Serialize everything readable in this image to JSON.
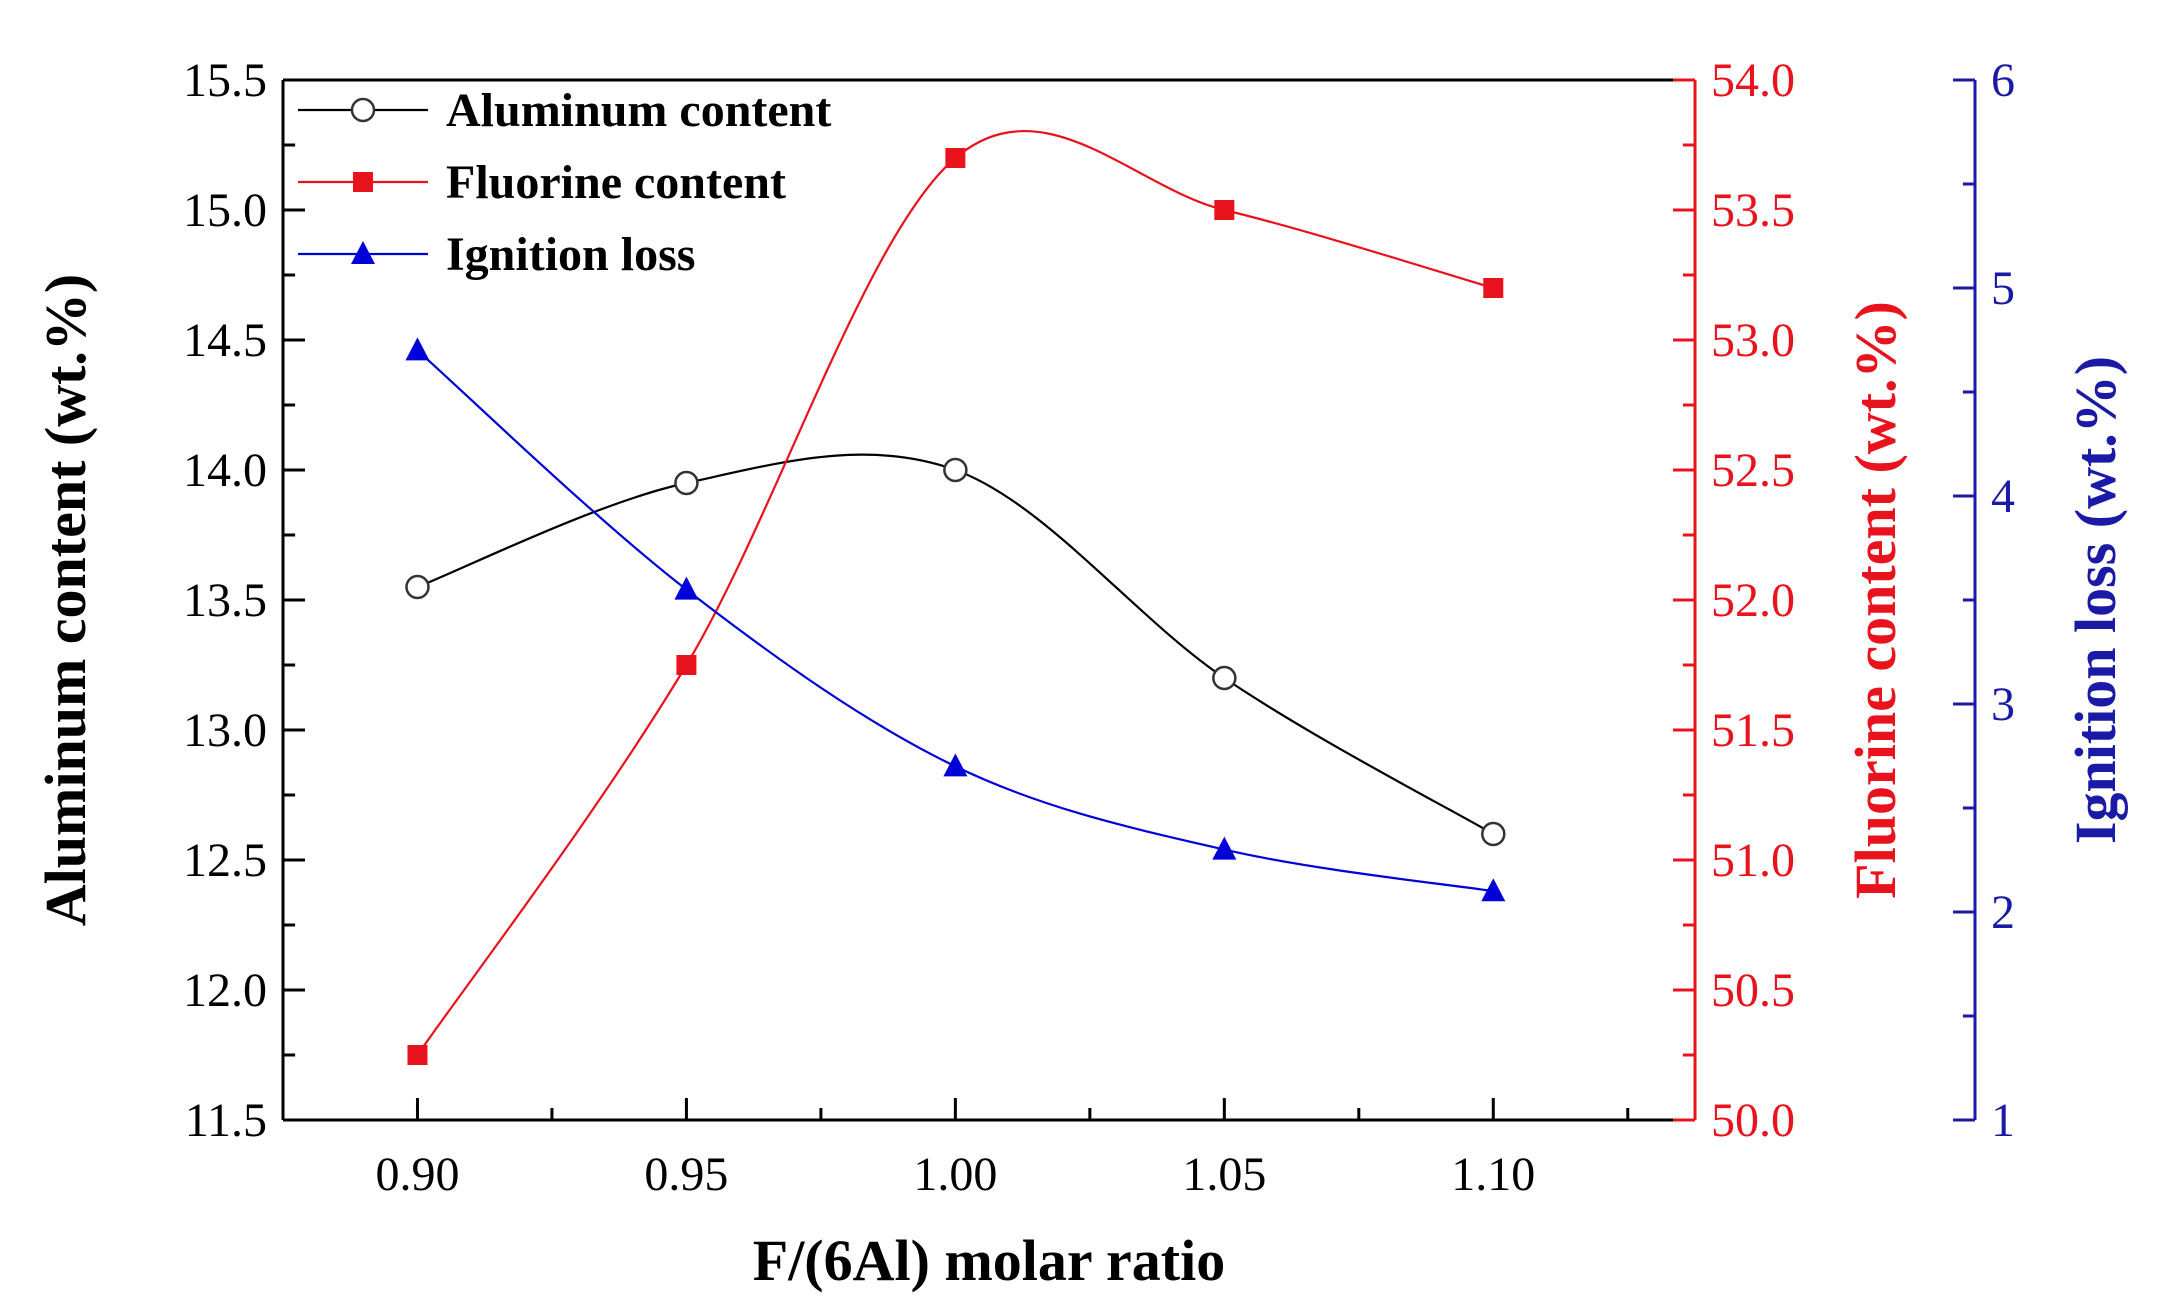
{
  "chart_data": {
    "type": "line",
    "x": [
      0.9,
      0.95,
      1.0,
      1.05,
      1.1
    ],
    "x_tick_labels": [
      "0.90",
      "0.95",
      "1.00",
      "1.05",
      "1.10"
    ],
    "xlabel": "F/(6Al) molar ratio",
    "xlim": [
      0.875,
      1.1375
    ],
    "axes": {
      "left": {
        "label": "Aluminum content (wt.%)",
        "ylim": [
          11.5,
          15.5
        ],
        "ticks": [
          11.5,
          12.0,
          12.5,
          13.0,
          13.5,
          14.0,
          14.5,
          15.0,
          15.5
        ],
        "tick_labels": [
          "11.5",
          "12.0",
          "12.5",
          "13.0",
          "13.5",
          "14.0",
          "14.5",
          "15.0",
          "15.5"
        ],
        "color": "#000000"
      },
      "right1": {
        "label": "Fluorine content (wt.%)",
        "ylim": [
          50.0,
          54.0
        ],
        "ticks": [
          50.0,
          50.5,
          51.0,
          51.5,
          52.0,
          52.5,
          53.0,
          53.5,
          54.0
        ],
        "tick_labels": [
          "50.0",
          "50.5",
          "51.0",
          "51.5",
          "52.0",
          "52.5",
          "53.0",
          "53.5",
          "54.0"
        ],
        "color": "#e8131c"
      },
      "right2": {
        "label": "Ignition loss (wt.%)",
        "ylim": [
          1,
          6
        ],
        "ticks": [
          1,
          2,
          3,
          4,
          5,
          6
        ],
        "tick_labels": [
          "1",
          "2",
          "3",
          "4",
          "5",
          "6"
        ],
        "color": "#1a1aa6"
      }
    },
    "series": [
      {
        "name": "Aluminum content",
        "axis": "left",
        "marker": "circle-open",
        "color": "#000000",
        "values": [
          13.55,
          13.95,
          14.0,
          13.2,
          12.6
        ]
      },
      {
        "name": "Fluorine content",
        "axis": "right1",
        "marker": "square",
        "color": "#e8131c",
        "values": [
          50.25,
          51.75,
          53.7,
          53.5,
          53.2
        ]
      },
      {
        "name": "Ignition loss",
        "axis": "right2",
        "marker": "triangle",
        "color": "#0000d8",
        "values": [
          4.7,
          3.55,
          2.7,
          2.3,
          2.1
        ]
      }
    ],
    "legend": {
      "placement": "top-left",
      "entries": [
        "Aluminum content",
        "Fluorine content",
        "Ignition loss"
      ]
    }
  }
}
